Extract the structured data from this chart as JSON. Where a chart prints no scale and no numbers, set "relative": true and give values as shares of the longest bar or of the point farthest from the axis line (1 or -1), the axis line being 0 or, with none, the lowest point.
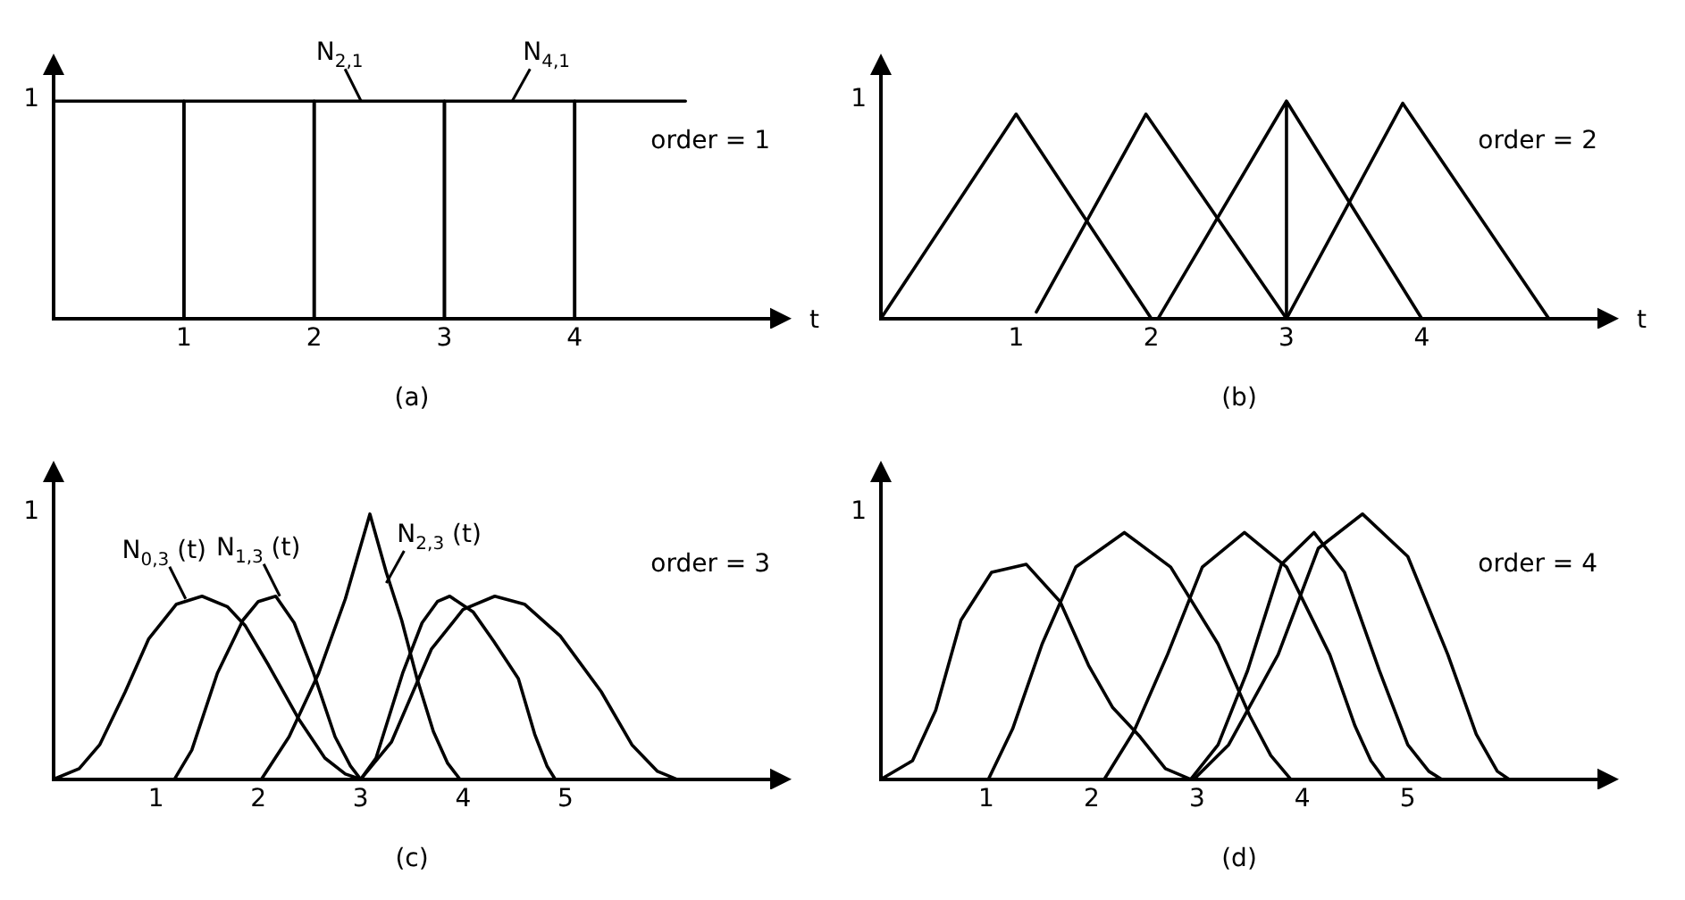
{
  "chart_data": [
    {
      "type": "line",
      "title": "(a)",
      "xlabel": "t",
      "xlim": [
        0,
        5.5
      ],
      "xticks": [
        1,
        2,
        3,
        4
      ],
      "relative": true,
      "marker": "none",
      "annotations": [
        "1",
        "order = 1",
        {
          "text": "N$_{2,1}$",
          "x": 2.36,
          "y": 1
        },
        {
          "text": "N$_{4,1}$",
          "x": 3.52,
          "y": 1
        }
      ],
      "series": [
        {
          "color": "#000000",
          "x": [
            0,
            0,
            1,
            1
          ],
          "values": [
            0,
            1,
            1,
            0
          ]
        },
        {
          "color": "#000000",
          "x": [
            1,
            1,
            2,
            2
          ],
          "values": [
            0,
            1,
            1,
            0
          ]
        },
        {
          "color": "#000000",
          "x": [
            2,
            2,
            3,
            3
          ],
          "values": [
            0,
            1,
            1,
            0
          ]
        },
        {
          "color": "#000000",
          "x": [
            3,
            3,
            4,
            4
          ],
          "values": [
            0,
            1,
            1,
            0
          ]
        },
        {
          "color": "#000000",
          "x": [
            4,
            4,
            4.85
          ],
          "values": [
            0,
            1,
            1
          ]
        }
      ]
    },
    {
      "type": "line",
      "title": "(b)",
      "xlabel": "t",
      "xlim": [
        0,
        5.3
      ],
      "xticks": [
        1,
        2,
        3,
        4
      ],
      "relative": true,
      "marker": "none",
      "annotations": [
        "1",
        "order = 2"
      ],
      "series": [
        {
          "color": "#000000",
          "x": [
            0,
            1,
            2
          ],
          "values": [
            0,
            0.94,
            0
          ]
        },
        {
          "color": "#000000",
          "x": [
            1.15,
            1.96,
            3
          ],
          "values": [
            0.03,
            0.94,
            0
          ]
        },
        {
          "color": "#000000",
          "x": [
            2.05,
            3,
            3,
            3,
            4
          ],
          "values": [
            0,
            1,
            0,
            1,
            0
          ]
        },
        {
          "color": "#000000",
          "x": [
            3,
            3.86,
            4.94
          ],
          "values": [
            0,
            0.99,
            0
          ]
        }
      ]
    },
    {
      "type": "line",
      "title": "(c)",
      "xlim": [
        0,
        7
      ],
      "xticks": [
        1,
        2,
        3,
        4,
        5
      ],
      "relative": true,
      "marker": "none",
      "annotations": [
        "1",
        "order = 3",
        {
          "text": "N$_{0,3}$ (t)",
          "x": 1.29,
          "y": 0.68
        },
        {
          "text": "N$_{1,3}$ (t)",
          "x": 2.21,
          "y": 0.69
        },
        {
          "text": "N$_{2,3}$ (t)",
          "x": 3.25,
          "y": 0.74
        }
      ],
      "series": [
        {
          "color": "#000000",
          "x": [
            0,
            0.25,
            0.45,
            0.7,
            0.93,
            1.2,
            1.45,
            1.7,
            1.87,
            2.1,
            2.39,
            2.65,
            2.85,
            3
          ],
          "values": [
            0,
            0.04,
            0.13,
            0.33,
            0.53,
            0.66,
            0.69,
            0.65,
            0.58,
            0.43,
            0.23,
            0.08,
            0.02,
            0
          ]
        },
        {
          "color": "#000000",
          "x": [
            1.18,
            1.35,
            1.6,
            1.85,
            2,
            2.17,
            2.35,
            2.54,
            2.75,
            2.9,
            3
          ],
          "values": [
            0,
            0.11,
            0.4,
            0.6,
            0.67,
            0.69,
            0.59,
            0.4,
            0.16,
            0.05,
            0
          ]
        },
        {
          "color": "#000000",
          "x": [
            2.03,
            2.3,
            2.59,
            2.85,
            3.09,
            3.25,
            3.4,
            3.55,
            3.71,
            3.85,
            3.97
          ],
          "values": [
            0,
            0.16,
            0.4,
            0.68,
            1,
            0.78,
            0.6,
            0.38,
            0.18,
            0.06,
            0
          ]
        },
        {
          "color": "#000000",
          "x": [
            3,
            3.15,
            3.41,
            3.6,
            3.75,
            3.87,
            4.1,
            4.3,
            4.54,
            4.7,
            4.82,
            4.9
          ],
          "values": [
            0,
            0.08,
            0.4,
            0.59,
            0.67,
            0.69,
            0.63,
            0.52,
            0.38,
            0.17,
            0.05,
            0
          ]
        },
        {
          "color": "#000000",
          "x": [
            3,
            3.3,
            3.69,
            4,
            4.31,
            4.6,
            4.95,
            5.35,
            5.65,
            5.9,
            6.09
          ],
          "values": [
            0,
            0.14,
            0.49,
            0.64,
            0.69,
            0.66,
            0.54,
            0.33,
            0.13,
            0.03,
            0
          ]
        }
      ]
    },
    {
      "type": "line",
      "title": "(d)",
      "xlim": [
        0,
        6.8
      ],
      "xticks": [
        1,
        2,
        3,
        4,
        5
      ],
      "relative": true,
      "marker": "none",
      "annotations": [
        "1",
        "order = 4"
      ],
      "series": [
        {
          "color": "#000000",
          "x": [
            0,
            0.3,
            0.52,
            0.76,
            1.05,
            1.38,
            1.7,
            1.97,
            2.2,
            2.46,
            2.7,
            2.94
          ],
          "values": [
            0,
            0.07,
            0.26,
            0.6,
            0.78,
            0.81,
            0.67,
            0.43,
            0.27,
            0.16,
            0.04,
            0
          ]
        },
        {
          "color": "#000000",
          "x": [
            1.02,
            1.25,
            1.53,
            1.85,
            2.31,
            2.75,
            3.2,
            3.5,
            3.7,
            3.89
          ],
          "values": [
            0,
            0.19,
            0.51,
            0.8,
            0.93,
            0.8,
            0.51,
            0.24,
            0.09,
            0
          ]
        },
        {
          "color": "#000000",
          "x": [
            2.12,
            2.4,
            2.72,
            3.05,
            3.45,
            3.85,
            4.26,
            4.5,
            4.65,
            4.78
          ],
          "values": [
            0,
            0.18,
            0.47,
            0.8,
            0.93,
            0.8,
            0.47,
            0.2,
            0.07,
            0
          ]
        },
        {
          "color": "#000000",
          "x": [
            2.94,
            3.2,
            3.48,
            3.8,
            4.11,
            4.4,
            4.73,
            5,
            5.2,
            5.32
          ],
          "values": [
            0,
            0.13,
            0.41,
            0.81,
            0.93,
            0.78,
            0.41,
            0.13,
            0.03,
            0
          ]
        },
        {
          "color": "#000000",
          "x": [
            2.97,
            3.3,
            3.77,
            4.15,
            4.57,
            5,
            5.38,
            5.65,
            5.85,
            5.96
          ],
          "values": [
            0,
            0.13,
            0.47,
            0.87,
            1,
            0.84,
            0.47,
            0.17,
            0.03,
            0
          ]
        }
      ]
    }
  ]
}
